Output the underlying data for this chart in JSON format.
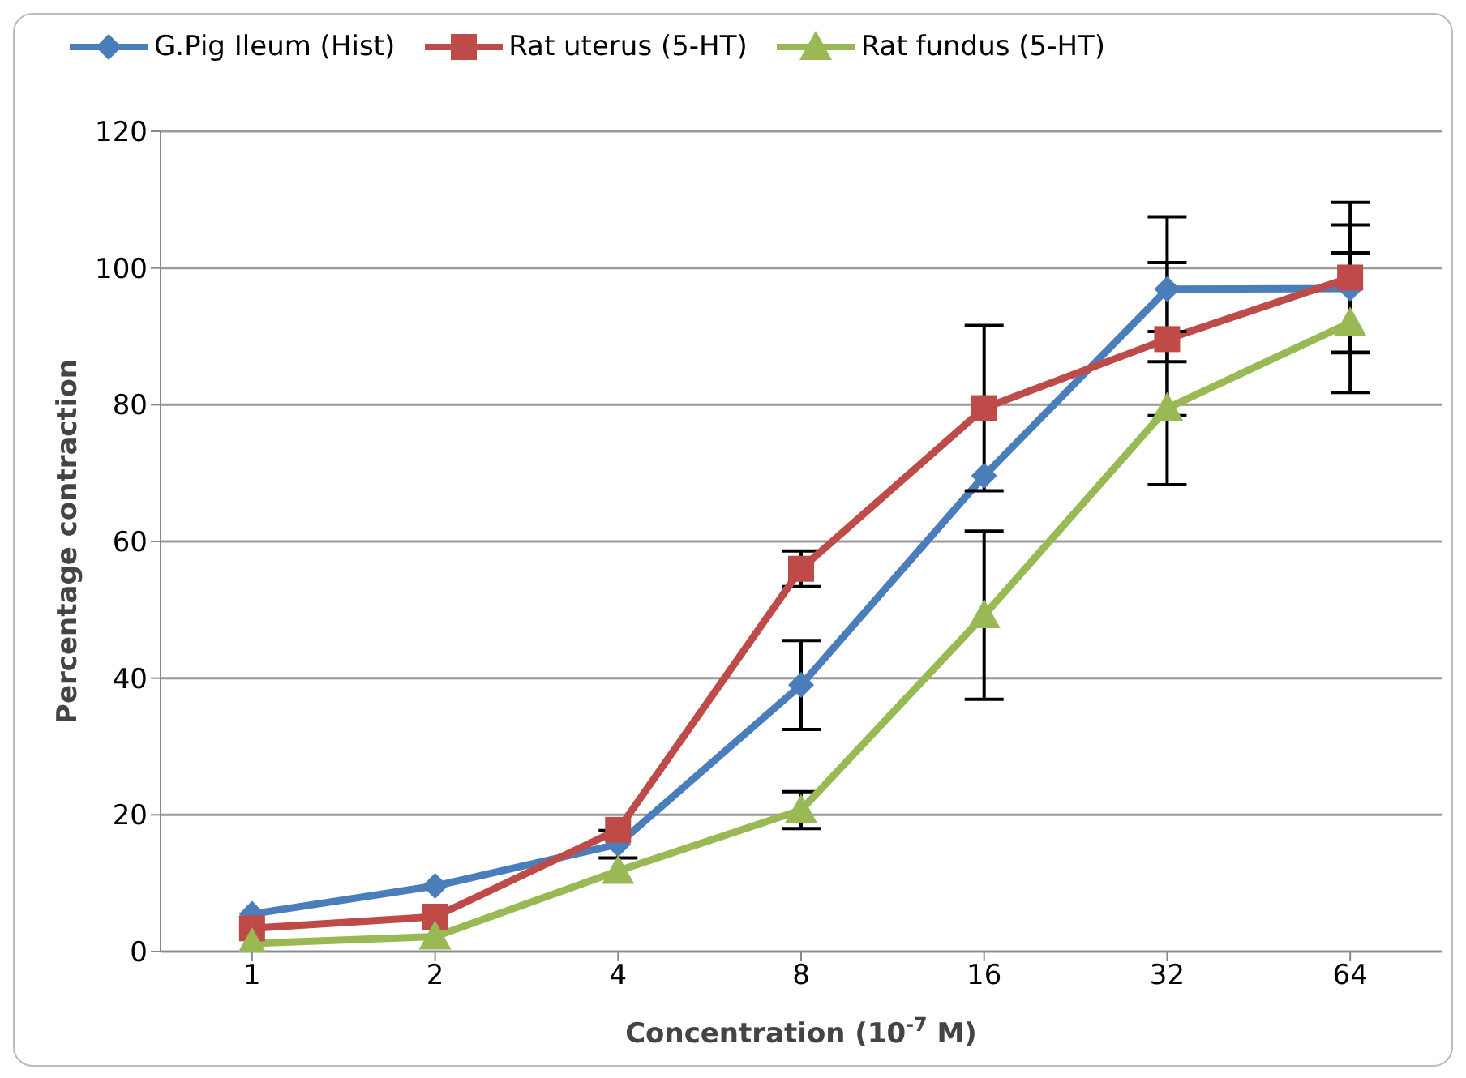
{
  "chart_data": {
    "type": "line",
    "xlabel": "Concentration (10$^{-7}$ M)",
    "ylabel": "Percentage contraction",
    "categories": [
      "1",
      "2",
      "4",
      "8",
      "16",
      "32",
      "64"
    ],
    "ylim": [
      0,
      120
    ],
    "yticks": [
      0,
      20,
      40,
      60,
      80,
      100,
      120
    ],
    "grid": "y",
    "legend": "top left",
    "line_style": "solid",
    "series": [
      {
        "name": "G.Pig Ileum (Hist)",
        "color": "#4a7ebb",
        "marker": "diamond",
        "values": [
          5.5,
          9.6,
          15.7,
          39,
          69.6,
          96.9,
          97
        ],
        "errors": [
          null,
          null,
          2,
          6.5,
          null,
          10.6,
          9.3
        ]
      },
      {
        "name": "Rat uterus (5-HT)",
        "color": "#be4b48",
        "marker": "square",
        "values": [
          3.4,
          5.1,
          17.8,
          56,
          79.5,
          89.6,
          98.6
        ],
        "errors": [
          null,
          null,
          null,
          2.6,
          12.1,
          11.2,
          11
        ]
      },
      {
        "name": "Rat fundus (5-HT)",
        "color": "#98b954",
        "marker": "triangle",
        "values": [
          1.2,
          2.2,
          11.8,
          20.7,
          49.2,
          79.5,
          92
        ],
        "errors": [
          null,
          null,
          null,
          2.7,
          12.3,
          11.2,
          10.2
        ]
      }
    ]
  }
}
